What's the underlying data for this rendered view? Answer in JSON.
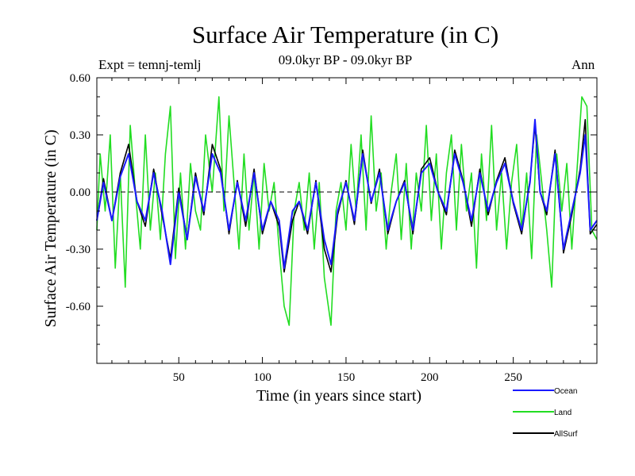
{
  "chart_data": {
    "type": "line",
    "title": "Surface Air Temperature (in C)",
    "subtitle": "09.0kyr BP - 09.0kyr BP",
    "left_label": "Expt = temnj-temlj",
    "right_label": "Ann",
    "xlabel": "Time (in years since start)",
    "ylabel": "Surface Air Temperature (in C)",
    "xlim": [
      1,
      300
    ],
    "ylim": [
      -0.9,
      0.6
    ],
    "xticks": [
      50,
      100,
      150,
      200,
      250
    ],
    "yticks": [
      0.6,
      0.3,
      0.0,
      -0.3,
      -0.6
    ],
    "ytick_labels": [
      "0.60",
      "0.30",
      "0.00",
      "-0.30",
      "-0.60"
    ],
    "zero_line": "dashed",
    "series": [
      {
        "name": "Ocean",
        "color": "#1a1aff",
        "x": [
          1,
          5,
          10,
          15,
          20,
          25,
          30,
          35,
          40,
          45,
          50,
          55,
          60,
          65,
          70,
          75,
          80,
          85,
          90,
          95,
          100,
          105,
          110,
          113,
          118,
          122,
          127,
          132,
          137,
          141,
          145,
          150,
          155,
          160,
          165,
          170,
          175,
          180,
          185,
          190,
          195,
          200,
          205,
          210,
          215,
          220,
          225,
          230,
          235,
          240,
          245,
          250,
          255,
          260,
          263,
          266,
          270,
          275,
          280,
          285,
          290,
          293,
          296,
          300
        ],
        "values": [
          -0.15,
          0.05,
          -0.15,
          0.08,
          0.2,
          -0.05,
          -0.15,
          0.1,
          -0.1,
          -0.38,
          0.0,
          -0.25,
          0.08,
          -0.1,
          0.2,
          0.1,
          -0.2,
          0.05,
          -0.15,
          0.1,
          -0.2,
          -0.05,
          -0.15,
          -0.4,
          -0.1,
          -0.05,
          -0.2,
          0.05,
          -0.25,
          -0.38,
          -0.1,
          0.05,
          -0.15,
          0.2,
          -0.05,
          0.1,
          -0.2,
          -0.05,
          0.05,
          -0.2,
          0.1,
          0.15,
          0.0,
          -0.1,
          0.2,
          0.05,
          -0.15,
          0.1,
          -0.1,
          0.05,
          0.15,
          -0.05,
          -0.2,
          0.05,
          0.38,
          0.0,
          -0.1,
          0.2,
          -0.3,
          -0.1,
          0.1,
          0.3,
          -0.2,
          -0.15
        ]
      },
      {
        "name": "Land",
        "color": "#22dd22",
        "x": [
          1,
          3,
          6,
          9,
          12,
          15,
          18,
          21,
          24,
          27,
          30,
          33,
          36,
          39,
          42,
          45,
          48,
          51,
          54,
          57,
          60,
          63,
          66,
          70,
          74,
          77,
          80,
          83,
          86,
          89,
          92,
          95,
          98,
          101,
          104,
          107,
          110,
          113,
          116,
          119,
          122,
          125,
          128,
          131,
          134,
          137,
          141,
          144,
          147,
          150,
          153,
          156,
          159,
          162,
          165,
          168,
          171,
          174,
          177,
          180,
          183,
          186,
          189,
          192,
          195,
          198,
          201,
          204,
          207,
          210,
          213,
          216,
          219,
          222,
          225,
          228,
          231,
          234,
          237,
          240,
          243,
          246,
          249,
          252,
          255,
          258,
          261,
          264,
          267,
          270,
          273,
          276,
          279,
          282,
          285,
          288,
          291,
          294,
          297,
          300
        ],
        "values": [
          -0.2,
          0.2,
          -0.1,
          0.3,
          -0.4,
          0.1,
          -0.5,
          0.35,
          0.0,
          -0.3,
          0.3,
          -0.2,
          0.1,
          -0.25,
          0.2,
          0.45,
          -0.35,
          0.1,
          -0.3,
          0.15,
          -0.1,
          -0.2,
          0.3,
          0.0,
          0.5,
          -0.1,
          0.4,
          0.05,
          -0.3,
          0.2,
          -0.2,
          0.1,
          -0.3,
          0.15,
          -0.1,
          0.05,
          -0.3,
          -0.6,
          -0.7,
          -0.1,
          0.05,
          -0.2,
          0.1,
          -0.3,
          0.05,
          -0.45,
          -0.7,
          -0.1,
          0.05,
          -0.2,
          0.25,
          -0.1,
          0.3,
          -0.2,
          0.4,
          -0.1,
          0.1,
          -0.3,
          0.0,
          0.2,
          -0.25,
          0.15,
          -0.3,
          0.1,
          -0.1,
          0.35,
          -0.15,
          0.2,
          -0.3,
          0.1,
          0.3,
          -0.2,
          0.25,
          -0.1,
          0.1,
          -0.4,
          0.2,
          -0.15,
          0.35,
          -0.2,
          0.1,
          -0.3,
          0.05,
          0.25,
          -0.2,
          0.1,
          -0.35,
          0.3,
          0.05,
          -0.2,
          -0.5,
          0.2,
          -0.1,
          0.15,
          -0.3,
          0.1,
          0.5,
          0.45,
          -0.2,
          -0.25
        ]
      },
      {
        "name": "AllSurf",
        "color": "#000000",
        "x": [
          1,
          5,
          10,
          15,
          20,
          25,
          30,
          35,
          40,
          45,
          50,
          55,
          60,
          65,
          70,
          75,
          80,
          85,
          90,
          95,
          100,
          105,
          110,
          113,
          118,
          122,
          127,
          132,
          137,
          141,
          145,
          150,
          155,
          160,
          165,
          170,
          175,
          180,
          185,
          190,
          195,
          200,
          205,
          210,
          215,
          220,
          225,
          230,
          235,
          240,
          245,
          250,
          255,
          260,
          263,
          266,
          270,
          275,
          280,
          285,
          290,
          293,
          296,
          300
        ],
        "values": [
          -0.15,
          0.07,
          -0.15,
          0.1,
          0.25,
          -0.05,
          -0.18,
          0.12,
          -0.12,
          -0.35,
          0.02,
          -0.25,
          0.1,
          -0.12,
          0.25,
          0.12,
          -0.22,
          0.06,
          -0.18,
          0.12,
          -0.22,
          -0.05,
          -0.18,
          -0.42,
          -0.15,
          -0.05,
          -0.22,
          0.06,
          -0.3,
          -0.42,
          -0.12,
          0.06,
          -0.17,
          0.22,
          -0.06,
          0.12,
          -0.22,
          -0.05,
          0.06,
          -0.22,
          0.12,
          0.18,
          0.0,
          -0.12,
          0.22,
          0.06,
          -0.18,
          0.12,
          -0.12,
          0.06,
          0.18,
          -0.06,
          -0.22,
          0.06,
          0.35,
          0.0,
          -0.12,
          0.22,
          -0.32,
          -0.12,
          0.12,
          0.38,
          -0.22,
          -0.17
        ]
      }
    ]
  },
  "legend": {
    "items": [
      {
        "label": "Ocean",
        "color": "#1a1aff"
      },
      {
        "label": "Land",
        "color": "#22dd22"
      },
      {
        "label": "AllSurf",
        "color": "#000000"
      }
    ]
  }
}
